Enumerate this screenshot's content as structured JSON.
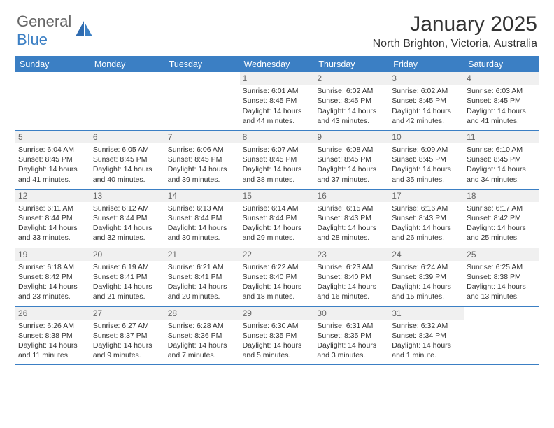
{
  "logo": {
    "text_gray": "General",
    "text_blue": "Blue"
  },
  "title": "January 2025",
  "location": "North Brighton, Victoria, Australia",
  "colors": {
    "header_blue": "#3b7fc4",
    "text_gray": "#666666",
    "text_dark": "#333333",
    "day_bg": "#f0f0f0",
    "background": "#ffffff"
  },
  "weekdays": [
    "Sunday",
    "Monday",
    "Tuesday",
    "Wednesday",
    "Thursday",
    "Friday",
    "Saturday"
  ],
  "first_weekday_index": 3,
  "days": [
    {
      "n": 1,
      "sunrise": "6:01 AM",
      "sunset": "8:45 PM",
      "dl1": "Daylight: 14 hours",
      "dl2": "and 44 minutes."
    },
    {
      "n": 2,
      "sunrise": "6:02 AM",
      "sunset": "8:45 PM",
      "dl1": "Daylight: 14 hours",
      "dl2": "and 43 minutes."
    },
    {
      "n": 3,
      "sunrise": "6:02 AM",
      "sunset": "8:45 PM",
      "dl1": "Daylight: 14 hours",
      "dl2": "and 42 minutes."
    },
    {
      "n": 4,
      "sunrise": "6:03 AM",
      "sunset": "8:45 PM",
      "dl1": "Daylight: 14 hours",
      "dl2": "and 41 minutes."
    },
    {
      "n": 5,
      "sunrise": "6:04 AM",
      "sunset": "8:45 PM",
      "dl1": "Daylight: 14 hours",
      "dl2": "and 41 minutes."
    },
    {
      "n": 6,
      "sunrise": "6:05 AM",
      "sunset": "8:45 PM",
      "dl1": "Daylight: 14 hours",
      "dl2": "and 40 minutes."
    },
    {
      "n": 7,
      "sunrise": "6:06 AM",
      "sunset": "8:45 PM",
      "dl1": "Daylight: 14 hours",
      "dl2": "and 39 minutes."
    },
    {
      "n": 8,
      "sunrise": "6:07 AM",
      "sunset": "8:45 PM",
      "dl1": "Daylight: 14 hours",
      "dl2": "and 38 minutes."
    },
    {
      "n": 9,
      "sunrise": "6:08 AM",
      "sunset": "8:45 PM",
      "dl1": "Daylight: 14 hours",
      "dl2": "and 37 minutes."
    },
    {
      "n": 10,
      "sunrise": "6:09 AM",
      "sunset": "8:45 PM",
      "dl1": "Daylight: 14 hours",
      "dl2": "and 35 minutes."
    },
    {
      "n": 11,
      "sunrise": "6:10 AM",
      "sunset": "8:45 PM",
      "dl1": "Daylight: 14 hours",
      "dl2": "and 34 minutes."
    },
    {
      "n": 12,
      "sunrise": "6:11 AM",
      "sunset": "8:44 PM",
      "dl1": "Daylight: 14 hours",
      "dl2": "and 33 minutes."
    },
    {
      "n": 13,
      "sunrise": "6:12 AM",
      "sunset": "8:44 PM",
      "dl1": "Daylight: 14 hours",
      "dl2": "and 32 minutes."
    },
    {
      "n": 14,
      "sunrise": "6:13 AM",
      "sunset": "8:44 PM",
      "dl1": "Daylight: 14 hours",
      "dl2": "and 30 minutes."
    },
    {
      "n": 15,
      "sunrise": "6:14 AM",
      "sunset": "8:44 PM",
      "dl1": "Daylight: 14 hours",
      "dl2": "and 29 minutes."
    },
    {
      "n": 16,
      "sunrise": "6:15 AM",
      "sunset": "8:43 PM",
      "dl1": "Daylight: 14 hours",
      "dl2": "and 28 minutes."
    },
    {
      "n": 17,
      "sunrise": "6:16 AM",
      "sunset": "8:43 PM",
      "dl1": "Daylight: 14 hours",
      "dl2": "and 26 minutes."
    },
    {
      "n": 18,
      "sunrise": "6:17 AM",
      "sunset": "8:42 PM",
      "dl1": "Daylight: 14 hours",
      "dl2": "and 25 minutes."
    },
    {
      "n": 19,
      "sunrise": "6:18 AM",
      "sunset": "8:42 PM",
      "dl1": "Daylight: 14 hours",
      "dl2": "and 23 minutes."
    },
    {
      "n": 20,
      "sunrise": "6:19 AM",
      "sunset": "8:41 PM",
      "dl1": "Daylight: 14 hours",
      "dl2": "and 21 minutes."
    },
    {
      "n": 21,
      "sunrise": "6:21 AM",
      "sunset": "8:41 PM",
      "dl1": "Daylight: 14 hours",
      "dl2": "and 20 minutes."
    },
    {
      "n": 22,
      "sunrise": "6:22 AM",
      "sunset": "8:40 PM",
      "dl1": "Daylight: 14 hours",
      "dl2": "and 18 minutes."
    },
    {
      "n": 23,
      "sunrise": "6:23 AM",
      "sunset": "8:40 PM",
      "dl1": "Daylight: 14 hours",
      "dl2": "and 16 minutes."
    },
    {
      "n": 24,
      "sunrise": "6:24 AM",
      "sunset": "8:39 PM",
      "dl1": "Daylight: 14 hours",
      "dl2": "and 15 minutes."
    },
    {
      "n": 25,
      "sunrise": "6:25 AM",
      "sunset": "8:38 PM",
      "dl1": "Daylight: 14 hours",
      "dl2": "and 13 minutes."
    },
    {
      "n": 26,
      "sunrise": "6:26 AM",
      "sunset": "8:38 PM",
      "dl1": "Daylight: 14 hours",
      "dl2": "and 11 minutes."
    },
    {
      "n": 27,
      "sunrise": "6:27 AM",
      "sunset": "8:37 PM",
      "dl1": "Daylight: 14 hours",
      "dl2": "and 9 minutes."
    },
    {
      "n": 28,
      "sunrise": "6:28 AM",
      "sunset": "8:36 PM",
      "dl1": "Daylight: 14 hours",
      "dl2": "and 7 minutes."
    },
    {
      "n": 29,
      "sunrise": "6:30 AM",
      "sunset": "8:35 PM",
      "dl1": "Daylight: 14 hours",
      "dl2": "and 5 minutes."
    },
    {
      "n": 30,
      "sunrise": "6:31 AM",
      "sunset": "8:35 PM",
      "dl1": "Daylight: 14 hours",
      "dl2": "and 3 minutes."
    },
    {
      "n": 31,
      "sunrise": "6:32 AM",
      "sunset": "8:34 PM",
      "dl1": "Daylight: 14 hours",
      "dl2": "and 1 minute."
    }
  ]
}
